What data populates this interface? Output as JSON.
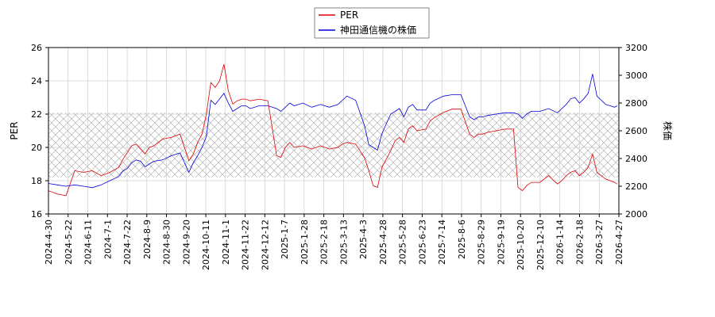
{
  "chart_data": {
    "type": "line",
    "left_axis": {
      "label": "PER",
      "range": [
        16,
        26
      ],
      "ticks": [
        16,
        18,
        20,
        22,
        24,
        26
      ]
    },
    "right_axis": {
      "label": "株価",
      "range": [
        2000,
        3200
      ],
      "ticks": [
        2000,
        2200,
        2400,
        2600,
        2800,
        3000,
        3200
      ]
    },
    "x_ticks": [
      "2024-4-30",
      "2024-5-22",
      "2024-6-11",
      "2024-7-1",
      "2024-7-22",
      "2024-8-9",
      "2024-8-30",
      "2024-9-20",
      "2024-10-11",
      "2024-11-1",
      "2024-11-22",
      "2024-12-12",
      "2025-1-7",
      "2025-1-28",
      "2025-2-18",
      "2025-3-13",
      "2025-4-3",
      "2025-4-28",
      "2025-5-28",
      "2025-6-23",
      "2025-7-14",
      "2025-8-6",
      "2025-8-29",
      "2025-9-19",
      "2025-10-20",
      "2025-12-10",
      "2026-1-14",
      "2026-2-18",
      "2026-3-27",
      "2026-4-27"
    ],
    "band": {
      "axis": "left",
      "from": 18.2,
      "to": 22.1
    },
    "grid": true,
    "legend": {
      "position": "top-center",
      "entries": [
        "PER",
        "神田通信機の株価"
      ]
    },
    "series": [
      {
        "name": "PER",
        "axis": "left",
        "color": "#dd0000",
        "points": [
          [
            0,
            17.4
          ],
          [
            1,
            17.2
          ],
          [
            2,
            17.1
          ],
          [
            3,
            18.6
          ],
          [
            4,
            18.5
          ],
          [
            5,
            18.6
          ],
          [
            6,
            18.3
          ],
          [
            7,
            18.5
          ],
          [
            8,
            18.8
          ],
          [
            8.5,
            19.3
          ],
          [
            9,
            19.7
          ],
          [
            9.5,
            20.1
          ],
          [
            10,
            20.2
          ],
          [
            10.5,
            19.9
          ],
          [
            11,
            19.6
          ],
          [
            11.5,
            20.0
          ],
          [
            12,
            20.1
          ],
          [
            13,
            20.5
          ],
          [
            14,
            20.6
          ],
          [
            15,
            20.8
          ],
          [
            16,
            19.2
          ],
          [
            16.5,
            19.6
          ],
          [
            17,
            20.3
          ],
          [
            17.5,
            20.8
          ],
          [
            18,
            22.0
          ],
          [
            18.5,
            23.9
          ],
          [
            19,
            23.6
          ],
          [
            19.5,
            24.0
          ],
          [
            20,
            25.0
          ],
          [
            20.5,
            23.4
          ],
          [
            21,
            22.6
          ],
          [
            21.5,
            22.8
          ],
          [
            22,
            22.9
          ],
          [
            22.5,
            22.9
          ],
          [
            23,
            22.8
          ],
          [
            24,
            22.9
          ],
          [
            25,
            22.8
          ],
          [
            26,
            19.5
          ],
          [
            26.5,
            19.4
          ],
          [
            27,
            20.0
          ],
          [
            27.5,
            20.3
          ],
          [
            28,
            20.0
          ],
          [
            29,
            20.1
          ],
          [
            30,
            19.9
          ],
          [
            31,
            20.1
          ],
          [
            32,
            19.9
          ],
          [
            33,
            20.0
          ],
          [
            33.5,
            20.2
          ],
          [
            34,
            20.3
          ],
          [
            35,
            20.2
          ],
          [
            36,
            19.4
          ],
          [
            36.5,
            18.6
          ],
          [
            37,
            17.7
          ],
          [
            37.5,
            17.6
          ],
          [
            38,
            18.8
          ],
          [
            39,
            19.8
          ],
          [
            39.5,
            20.4
          ],
          [
            40,
            20.6
          ],
          [
            40.5,
            20.3
          ],
          [
            41,
            21.1
          ],
          [
            41.5,
            21.3
          ],
          [
            42,
            21.0
          ],
          [
            43,
            21.1
          ],
          [
            43.5,
            21.6
          ],
          [
            44,
            21.8
          ],
          [
            45,
            22.1
          ],
          [
            46,
            22.3
          ],
          [
            47,
            22.3
          ],
          [
            48,
            20.8
          ],
          [
            48.5,
            20.6
          ],
          [
            49,
            20.8
          ],
          [
            49.5,
            20.8
          ],
          [
            50,
            20.9
          ],
          [
            51,
            21.0
          ],
          [
            52,
            21.1
          ],
          [
            53,
            21.1
          ],
          [
            53.5,
            17.6
          ],
          [
            54,
            17.4
          ],
          [
            54.5,
            17.7
          ],
          [
            55,
            17.9
          ],
          [
            56,
            17.9
          ],
          [
            57,
            18.3
          ],
          [
            58,
            17.8
          ],
          [
            58.5,
            18.0
          ],
          [
            59,
            18.3
          ],
          [
            59.5,
            18.5
          ],
          [
            60,
            18.6
          ],
          [
            60.5,
            18.3
          ],
          [
            61,
            18.5
          ],
          [
            61.5,
            18.8
          ],
          [
            62,
            19.6
          ],
          [
            62.5,
            18.5
          ],
          [
            63,
            18.3
          ],
          [
            63.5,
            18.1
          ],
          [
            64,
            18.0
          ],
          [
            64.5,
            17.9
          ],
          [
            64.8,
            17.8
          ]
        ]
      },
      {
        "name": "神田通信機の株価",
        "axis": "right",
        "color": "#0000dd",
        "points": [
          [
            0,
            2220
          ],
          [
            1,
            2210
          ],
          [
            2,
            2200
          ],
          [
            3,
            2210
          ],
          [
            4,
            2200
          ],
          [
            5,
            2190
          ],
          [
            6,
            2210
          ],
          [
            7,
            2240
          ],
          [
            8,
            2270
          ],
          [
            8.5,
            2310
          ],
          [
            9,
            2330
          ],
          [
            9.5,
            2370
          ],
          [
            10,
            2390
          ],
          [
            10.5,
            2380
          ],
          [
            11,
            2340
          ],
          [
            11.5,
            2360
          ],
          [
            12,
            2380
          ],
          [
            13,
            2390
          ],
          [
            14,
            2420
          ],
          [
            15,
            2440
          ],
          [
            16,
            2300
          ],
          [
            16.5,
            2370
          ],
          [
            17,
            2420
          ],
          [
            17.5,
            2480
          ],
          [
            18,
            2560
          ],
          [
            18.5,
            2820
          ],
          [
            19,
            2790
          ],
          [
            19.5,
            2830
          ],
          [
            20,
            2870
          ],
          [
            20.5,
            2800
          ],
          [
            21,
            2740
          ],
          [
            21.5,
            2760
          ],
          [
            22,
            2780
          ],
          [
            22.5,
            2780
          ],
          [
            23,
            2760
          ],
          [
            24,
            2780
          ],
          [
            25,
            2780
          ],
          [
            26,
            2760
          ],
          [
            26.5,
            2740
          ],
          [
            27,
            2770
          ],
          [
            27.5,
            2800
          ],
          [
            28,
            2780
          ],
          [
            29,
            2800
          ],
          [
            30,
            2770
          ],
          [
            31,
            2790
          ],
          [
            32,
            2770
          ],
          [
            33,
            2790
          ],
          [
            33.5,
            2820
          ],
          [
            34,
            2850
          ],
          [
            35,
            2820
          ],
          [
            36,
            2640
          ],
          [
            36.5,
            2500
          ],
          [
            37,
            2480
          ],
          [
            37.5,
            2460
          ],
          [
            38,
            2580
          ],
          [
            39,
            2720
          ],
          [
            39.5,
            2740
          ],
          [
            40,
            2760
          ],
          [
            40.5,
            2700
          ],
          [
            41,
            2770
          ],
          [
            41.5,
            2790
          ],
          [
            42,
            2750
          ],
          [
            43,
            2750
          ],
          [
            43.5,
            2800
          ],
          [
            44,
            2820
          ],
          [
            45,
            2850
          ],
          [
            46,
            2860
          ],
          [
            47,
            2860
          ],
          [
            48,
            2700
          ],
          [
            48.5,
            2680
          ],
          [
            49,
            2700
          ],
          [
            49.5,
            2700
          ],
          [
            50,
            2710
          ],
          [
            51,
            2720
          ],
          [
            52,
            2730
          ],
          [
            53,
            2730
          ],
          [
            53.5,
            2720
          ],
          [
            54,
            2690
          ],
          [
            54.5,
            2720
          ],
          [
            55,
            2740
          ],
          [
            56,
            2740
          ],
          [
            57,
            2760
          ],
          [
            58,
            2730
          ],
          [
            58.5,
            2760
          ],
          [
            59,
            2790
          ],
          [
            59.5,
            2830
          ],
          [
            60,
            2840
          ],
          [
            60.5,
            2800
          ],
          [
            61,
            2830
          ],
          [
            61.5,
            2870
          ],
          [
            62,
            3010
          ],
          [
            62.5,
            2850
          ],
          [
            63,
            2820
          ],
          [
            63.5,
            2790
          ],
          [
            64,
            2780
          ],
          [
            64.5,
            2770
          ],
          [
            64.8,
            2780
          ]
        ]
      }
    ]
  }
}
